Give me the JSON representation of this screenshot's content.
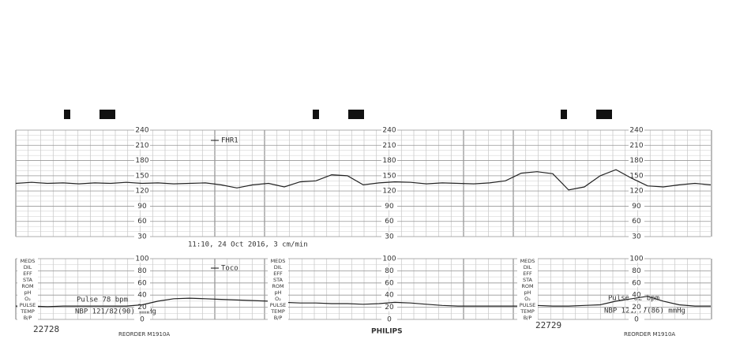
{
  "chart_data": [
    {
      "type": "line",
      "label": "FHR1",
      "annotation": "11:10, 24 Oct 2016, 3 cm/min",
      "color": "#222222",
      "ylim": [
        30,
        240
      ],
      "yticks": [
        30,
        60,
        90,
        120,
        150,
        180,
        210,
        240
      ],
      "values": [
        135,
        137,
        135,
        136,
        134,
        136,
        135,
        137,
        135,
        136,
        134,
        135,
        136,
        132,
        126,
        132,
        135,
        128,
        138,
        140,
        152,
        150,
        132,
        136,
        138,
        137,
        134,
        136,
        135,
        134,
        136,
        140,
        155,
        158,
        154,
        122,
        128,
        150,
        162,
        145,
        130,
        128,
        132,
        135,
        132
      ]
    },
    {
      "type": "line",
      "label": "Toco",
      "color": "#222222",
      "annotations": [
        "Pulse 78 bpm",
        "NBP 121/82(90) mmHg",
        "Pulse 82 bpm",
        "NBP 121/77(86) mmHg"
      ],
      "ylim": [
        0,
        100
      ],
      "yticks": [
        0,
        20,
        40,
        60,
        80,
        100
      ],
      "values": [
        22,
        22,
        21,
        22,
        22,
        22,
        22,
        22,
        24,
        30,
        34,
        35,
        34,
        33,
        32,
        31,
        30,
        28,
        27,
        27,
        26,
        26,
        25,
        26,
        28,
        27,
        25,
        23,
        22,
        22,
        22,
        22,
        22,
        23,
        22,
        22,
        23,
        24,
        30,
        34,
        38,
        30,
        24,
        22,
        22
      ]
    }
  ],
  "side_labels": [
    "MEDS",
    "DIL",
    "EFF",
    "STA",
    "ROM",
    "pH",
    "O₂",
    "PULSE",
    "TEMP",
    "B/P"
  ],
  "footer": {
    "page_numbers": [
      "22728",
      "22729"
    ],
    "reorder": "REORDER M1910A",
    "brand": "PHILIPS"
  }
}
